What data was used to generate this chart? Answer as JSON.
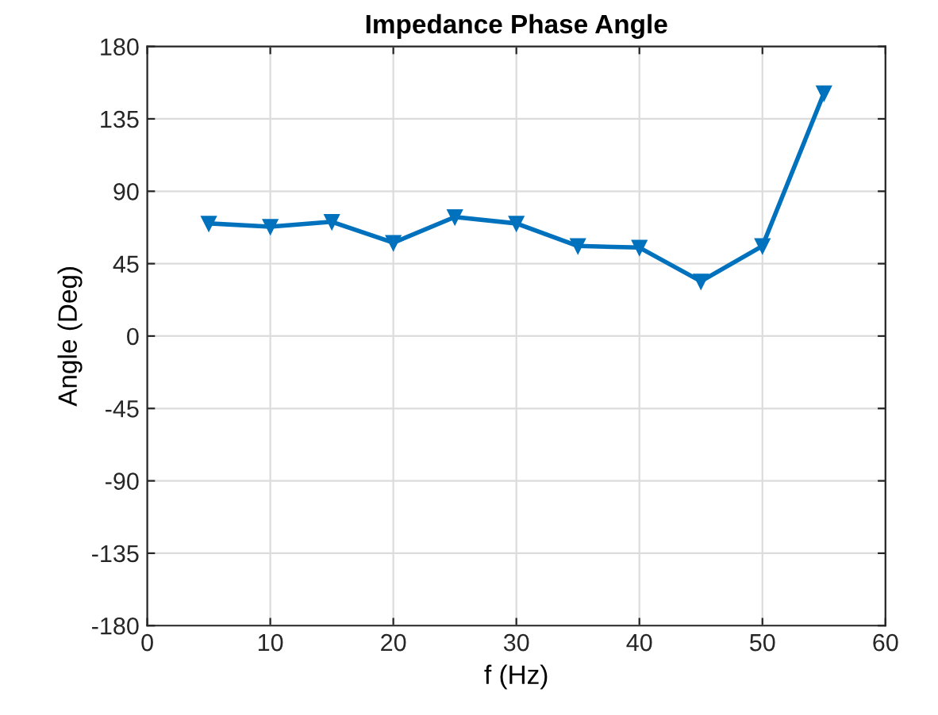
{
  "chart_data": {
    "type": "line",
    "title": "Impedance Phase Angle",
    "xlabel": "f (Hz)",
    "ylabel": "Angle (Deg)",
    "x": [
      5,
      10,
      15,
      20,
      25,
      30,
      35,
      40,
      45,
      50,
      55
    ],
    "series": [
      {
        "color": "#0072bd",
        "values": [
          70,
          68,
          71,
          58,
          74,
          70,
          56,
          55,
          34,
          56,
          151
        ]
      }
    ],
    "xlim": [
      0,
      60
    ],
    "xticks": [
      0,
      10,
      20,
      30,
      40,
      50,
      60
    ],
    "ylim": [
      -180,
      180
    ],
    "yticks": [
      -180,
      -135,
      -90,
      -45,
      0,
      45,
      90,
      135,
      180
    ],
    "grid": true,
    "marker": "triangle",
    "line_style": "solid"
  }
}
